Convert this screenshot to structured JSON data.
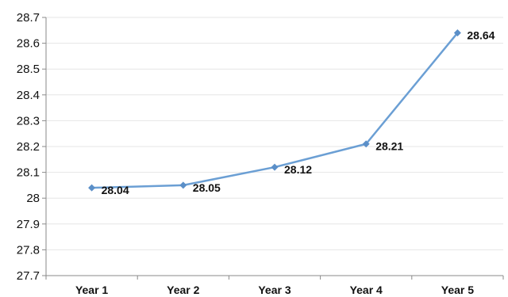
{
  "chart_data": {
    "type": "line",
    "title": "",
    "xlabel": "",
    "ylabel": "",
    "categories": [
      "Year 1",
      "Year 2",
      "Year 3",
      "Year 4",
      "Year 5"
    ],
    "series": [
      {
        "values": [
          28.04,
          28.05,
          28.12,
          28.21,
          28.64
        ],
        "data_labels": [
          "28.04",
          "28.05",
          "28.12",
          "28.21",
          "28.64"
        ]
      }
    ],
    "ylim": [
      27.7,
      28.7
    ],
    "y_ticks": [
      27.7,
      27.8,
      27.9,
      28,
      28.1,
      28.2,
      28.3,
      28.4,
      28.5,
      28.6,
      28.7
    ],
    "y_tick_labels": [
      "27.7",
      "27.8",
      "27.9",
      "28",
      "28.1",
      "28.2",
      "28.3",
      "28.4",
      "28.5",
      "28.6",
      "28.7"
    ],
    "grid": true,
    "legend": "none",
    "colors": {
      "line": "#6b9fd4",
      "marker": "#5b8fc8"
    }
  }
}
